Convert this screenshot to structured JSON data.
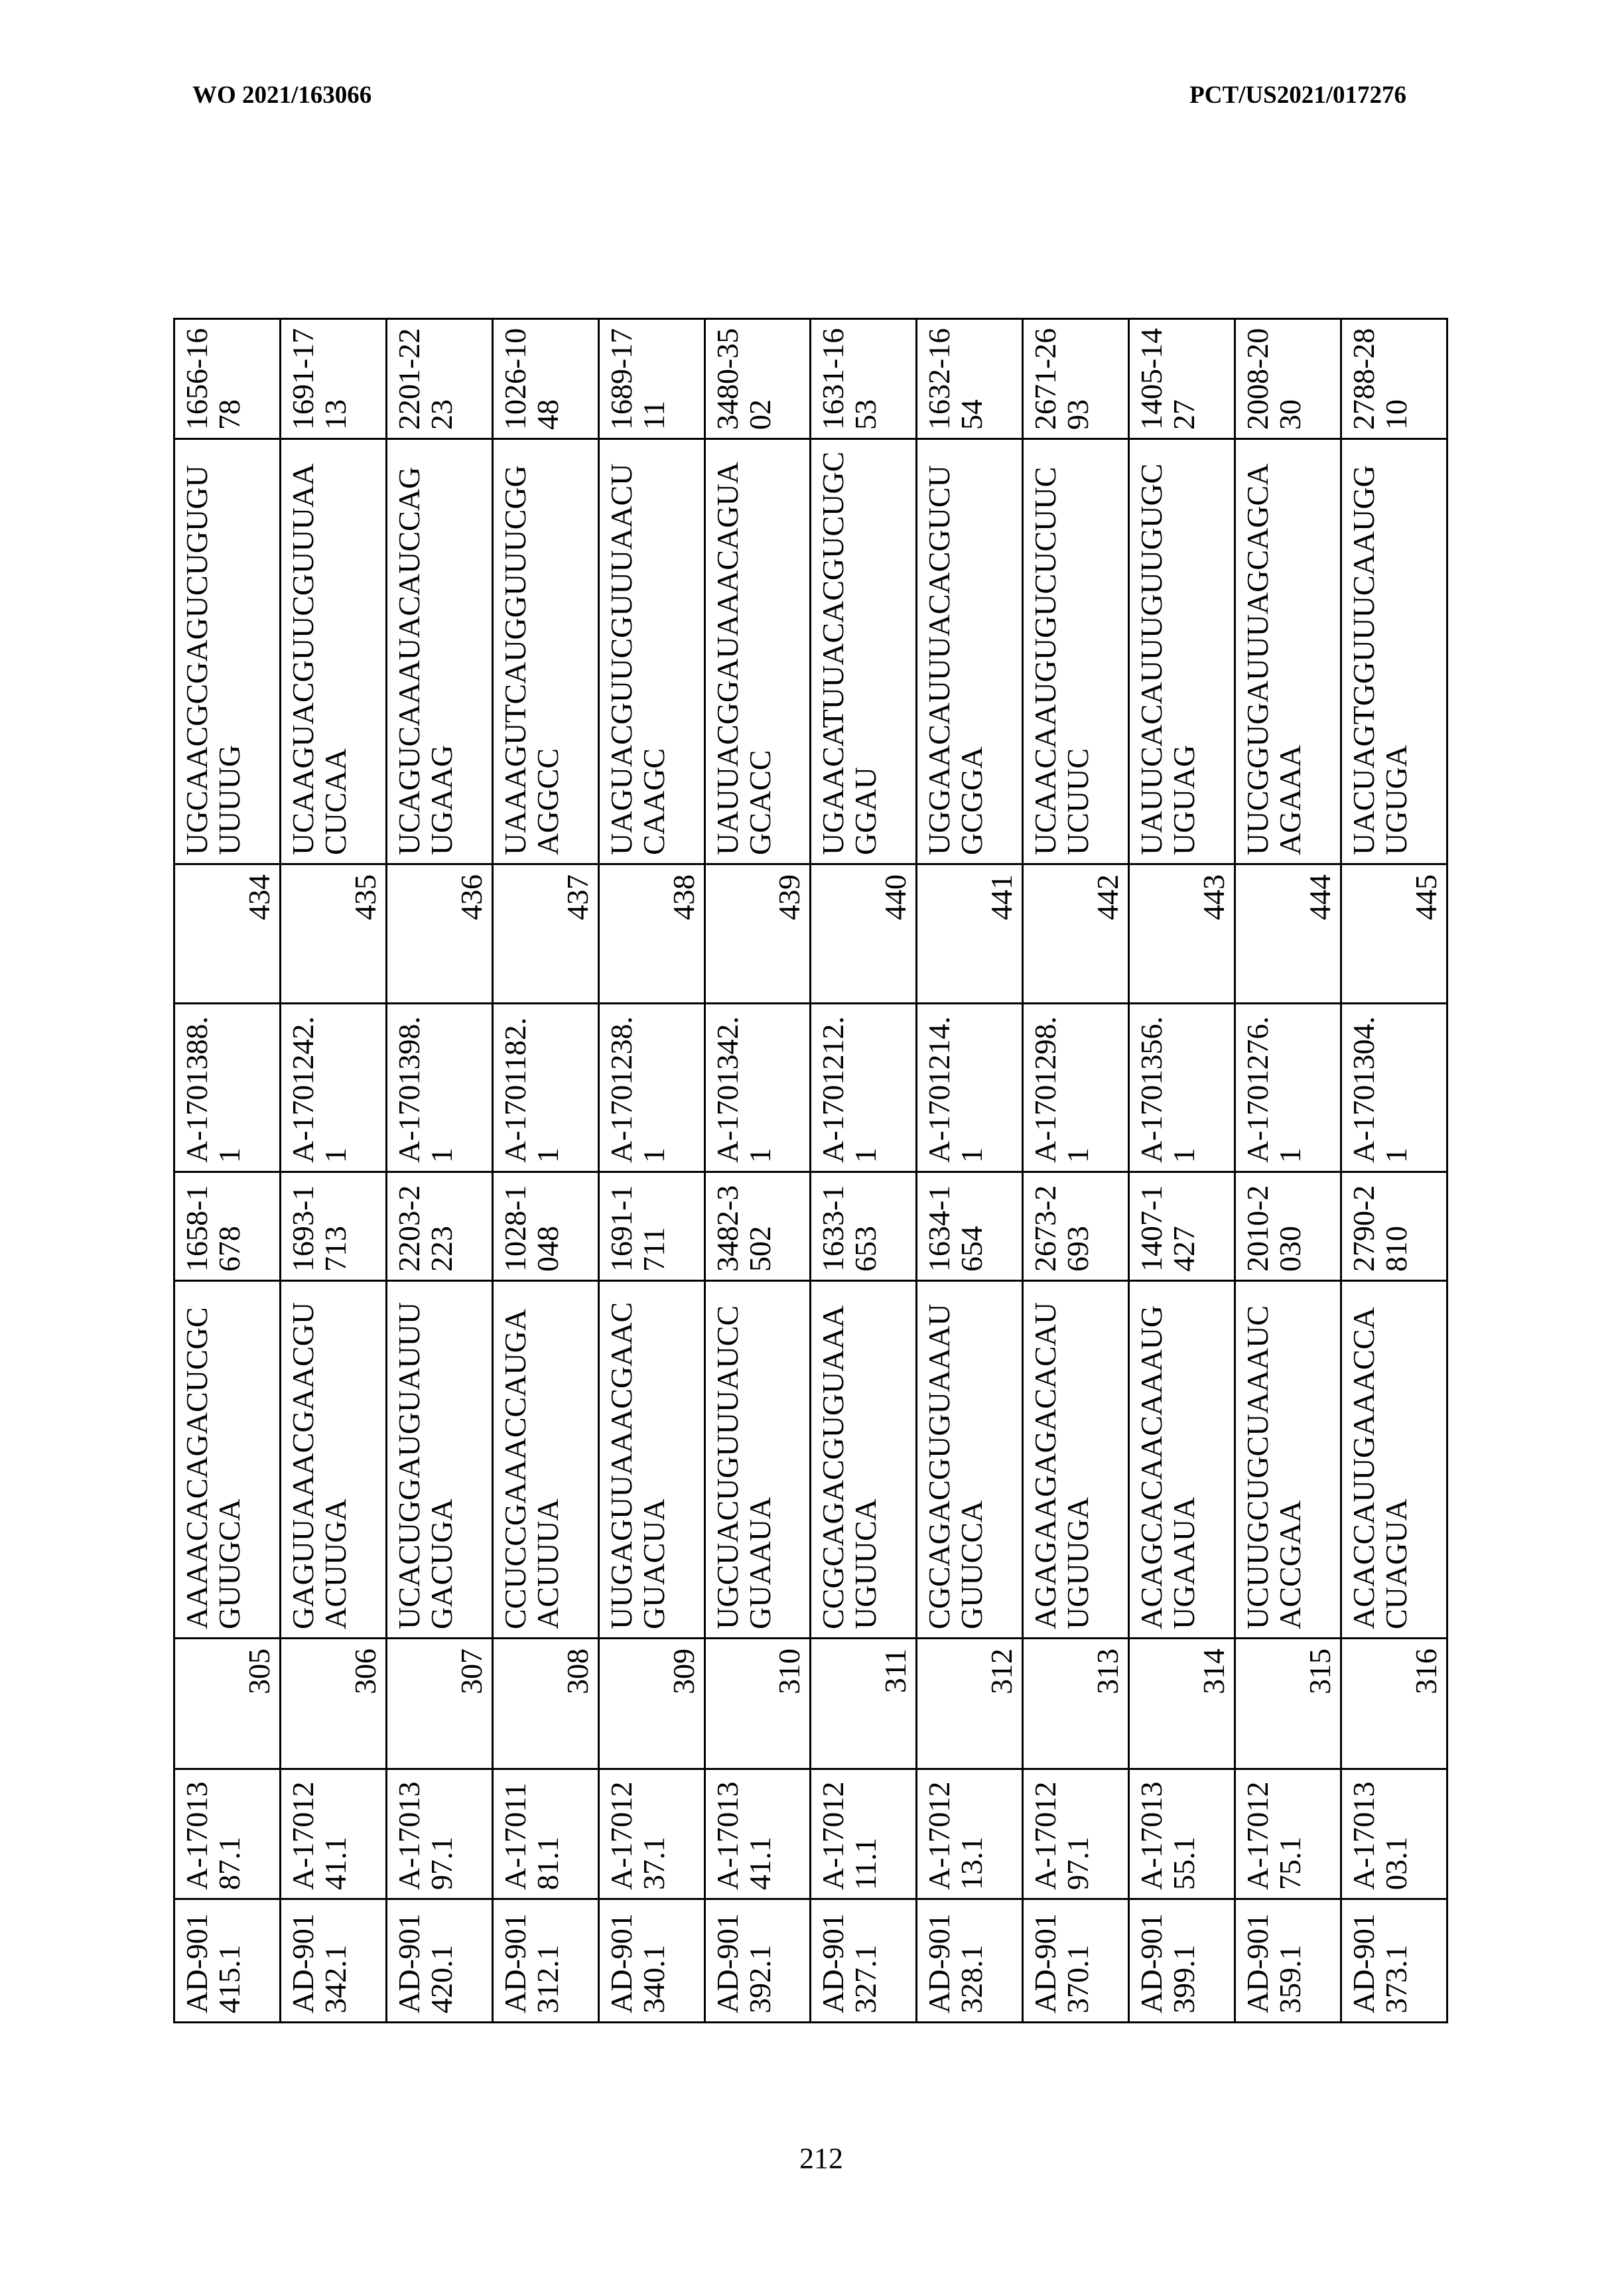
{
  "header": {
    "left": "WO 2021/163066",
    "right": "PCT/US2021/017276"
  },
  "page_number": "212",
  "table": {
    "rows": [
      {
        "duplex_id": "AD-901415.1",
        "sense_id": "A-1701387.1",
        "sense_seq_id": "305",
        "sense_seq": "AAAACACAGACUCGCGUUGCA",
        "sense_range": "1658-1678",
        "antisense_id": "A-1701388.1",
        "antisense_seq_id": "434",
        "antisense_seq": "UGCAACGCGAGUCUGUGUUUUUG",
        "antisense_range": "1656-1678"
      },
      {
        "duplex_id": "AD-901342.1",
        "sense_id": "A-1701241.1",
        "sense_seq_id": "306",
        "sense_seq": "GAGUUAAACGAACGUACUUGA",
        "sense_range": "1693-1713",
        "antisense_id": "A-1701242.1",
        "antisense_seq_id": "435",
        "antisense_seq": "UCAAGUACGUUCGUUUAACUCAA",
        "antisense_range": "1691-1713"
      },
      {
        "duplex_id": "AD-901420.1",
        "sense_id": "A-1701397.1",
        "sense_seq_id": "307",
        "sense_seq": "UCACUGGAUGUAUUUGACUGA",
        "sense_range": "2203-2223",
        "antisense_id": "A-1701398.1",
        "antisense_seq_id": "436",
        "antisense_seq": "UCAGUCAAAUACAUCCAGUGAAG",
        "antisense_range": "2201-2223"
      },
      {
        "duplex_id": "AD-901312.1",
        "sense_id": "A-1701181.1",
        "sense_seq_id": "308",
        "sense_seq": "CCUCCGAAACCAUGAACUUUA",
        "sense_range": "1028-1048",
        "antisense_id": "A-1701182.1",
        "antisense_seq_id": "437",
        "antisense_seq": "UAAAGUTCAUGGUUUCGGAGGCC",
        "antisense_range": "1026-1048"
      },
      {
        "duplex_id": "AD-901340.1",
        "sense_id": "A-1701237.1",
        "sense_seq_id": "309",
        "sense_seq": "UUGAGUUAAACGAACGUACUA",
        "sense_range": "1691-1711",
        "antisense_id": "A-1701238.1",
        "antisense_seq_id": "438",
        "antisense_seq": "UAGUACGUUCGUUUAACUCAAGC",
        "antisense_range": "1689-1711"
      },
      {
        "duplex_id": "AD-901392.1",
        "sense_id": "A-1701341.1",
        "sense_seq_id": "310",
        "sense_seq": "UGCUACUGUUUAUCCGUAAUA",
        "sense_range": "3482-3502",
        "antisense_id": "A-1701342.1",
        "antisense_seq_id": "439",
        "antisense_seq": "UAUUACGGAUAAACAGUAGCACC",
        "antisense_range": "3480-3502"
      },
      {
        "duplex_id": "AD-901327.1",
        "sense_id": "A-1701211.1",
        "sense_seq_id": "311",
        "sense_seq": "CCGCAGACGUGUAAAUGUUCA",
        "sense_range": "1633-1653",
        "antisense_id": "A-1701212.1",
        "antisense_seq_id": "440",
        "antisense_seq": "UGAACATUUACACGUCUGCGGAU",
        "antisense_range": "1631-1653"
      },
      {
        "duplex_id": "AD-901328.1",
        "sense_id": "A-1701213.1",
        "sense_seq_id": "312",
        "sense_seq": "CGCAGACGUGUAAAUGUUCCA",
        "sense_range": "1634-1654",
        "antisense_id": "A-1701214.1",
        "antisense_seq_id": "441",
        "antisense_seq": "UGGAACAUUUACACGUCUGCGGA",
        "antisense_range": "1632-1654"
      },
      {
        "duplex_id": "AD-901370.1",
        "sense_id": "A-1701297.1",
        "sense_seq_id": "313",
        "sense_seq": "AGAGAAGAGACACAUUGUUGA",
        "sense_range": "2673-2693",
        "antisense_id": "A-1701298.1",
        "antisense_seq_id": "442",
        "antisense_seq": "UCAACAAUGUGUCUCUUCUCUUC",
        "antisense_range": "2671-2693"
      },
      {
        "duplex_id": "AD-901399.1",
        "sense_id": "A-1701355.1",
        "sense_seq_id": "314",
        "sense_seq": "ACAGCACAACAAAUGUGAAUA",
        "sense_range": "1407-1427",
        "antisense_id": "A-1701356.1",
        "antisense_seq_id": "443",
        "antisense_seq": "UAUUCACAUUUGUUGUGCUGUAG",
        "antisense_range": "1405-1427"
      },
      {
        "duplex_id": "AD-901359.1",
        "sense_id": "A-1701275.1",
        "sense_seq_id": "315",
        "sense_seq": "UCUUGCUGCUAAAUCACCGAA",
        "sense_range": "2010-2030",
        "antisense_id": "A-1701276.1",
        "antisense_seq_id": "444",
        "antisense_seq": "UUCGGUGAUUUAGCAGCAAGAAA",
        "antisense_range": "2008-2030"
      },
      {
        "duplex_id": "AD-901373.1",
        "sense_id": "A-1701303.1",
        "sense_seq_id": "316",
        "sense_seq": "ACACCAUUGAAACCACUAGUA",
        "sense_range": "2790-2810",
        "antisense_id": "A-1701304.1",
        "antisense_seq_id": "445",
        "antisense_seq": "UACUAGTGGUUUCAAUGGUGUGA",
        "antisense_range": "2788-2810"
      }
    ]
  }
}
